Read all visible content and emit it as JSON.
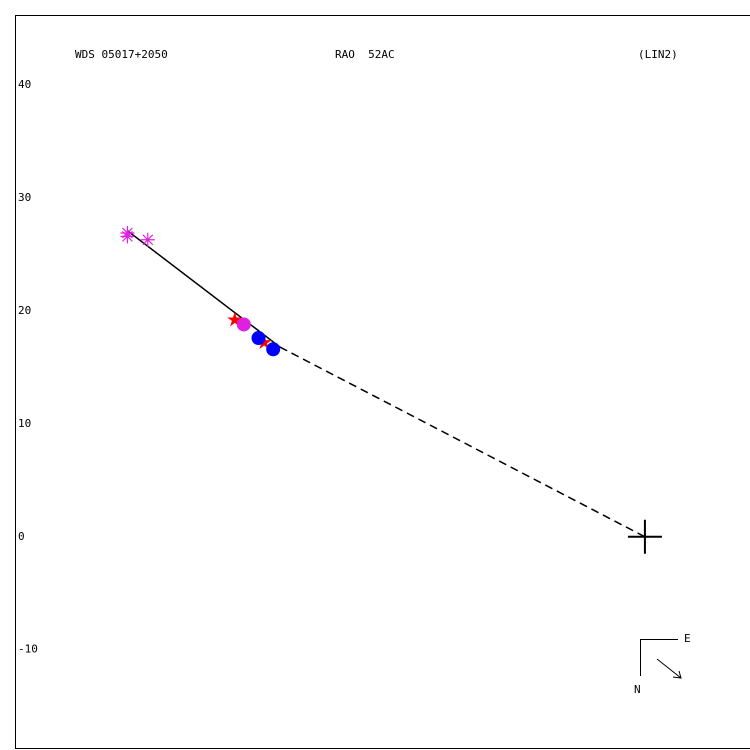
{
  "chart_data": {
    "type": "scatter",
    "header_left": "WDS 05017+2050",
    "header_center": "RAO  52AC",
    "header_right": "(LIN2)",
    "compass": {
      "east": "E",
      "north": "N"
    },
    "xlim": [
      -55.75,
      9.3
    ],
    "ylim": [
      -18.7,
      46.2
    ],
    "yticks": [
      40,
      30,
      20,
      10,
      0,
      -10
    ],
    "series": [
      {
        "marker": "asterisk",
        "color": "#e020e0",
        "x": [
          -45.8,
          -44.0,
          -45.8
        ],
        "values": [
          26.9,
          26.3,
          26.6
        ]
      },
      {
        "marker": "star",
        "color": "#ff0000",
        "x": [
          -36.3,
          -33.7
        ],
        "values": [
          19.2,
          17.2
        ]
      },
      {
        "marker": "circle",
        "color": "#e020e0",
        "x": [
          -35.5
        ],
        "values": [
          18.8
        ]
      },
      {
        "marker": "circle",
        "color": "#0000ff",
        "x": [
          -34.2,
          -32.9
        ],
        "values": [
          17.6,
          16.6
        ]
      },
      {
        "marker": "cross",
        "color": "#000000",
        "x": [
          0
        ],
        "values": [
          0
        ]
      }
    ],
    "lines": [
      {
        "dashed": false,
        "color": "#000000",
        "x": [
          -45.8,
          -32.3
        ],
        "values": [
          27.1,
          16.8
        ]
      },
      {
        "dashed": true,
        "color": "#000000",
        "x": [
          -32.3,
          0
        ],
        "values": [
          16.8,
          0
        ]
      }
    ]
  }
}
